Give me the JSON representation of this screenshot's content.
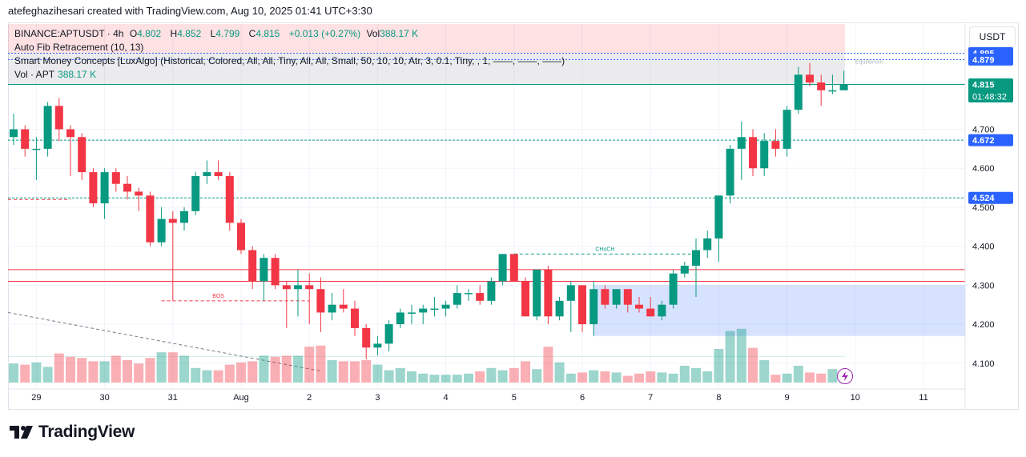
{
  "header": {
    "credit": "atefeghazihesari created with TradingView.com, Aug 10, 2025 01:41 UTC+3:30"
  },
  "legend": {
    "symbol": "BINANCE:APTUSDT · 4h",
    "open_label": "O",
    "open": "4.802",
    "high_label": "H",
    "high": "4.852",
    "low_label": "L",
    "low": "4.799",
    "close_label": "C",
    "close": "4.815",
    "change": "+0.013 (+0.27%)",
    "vol_label": "Vol",
    "vol": "388.17 K",
    "indicator_fib": "Auto Fib Retracement (10, 13)",
    "indicator_smc": "Smart Money Concepts [LuxAlgo] (Historical, Colored, All, All, Tiny, All, All, Small, 50, 10, 10, Atr, 3, 0.1, Tiny, , 1, ——, ——, ——)",
    "vol_indicator_label": "Vol · APT",
    "vol_indicator_value": "388.17 K"
  },
  "currency": "USDT",
  "footer": {
    "brand": "TradingView"
  },
  "colors": {
    "up": "#089981",
    "down": "#f23645",
    "blue": "#2962ff",
    "grid": "#f0f3fa"
  },
  "chart_data": {
    "type": "candlestick",
    "symbol": "BINANCE:APTUSDT",
    "timeframe": "4h",
    "ylim": [
      4.04,
      4.97
    ],
    "y_ticks": [
      "4.100",
      "4.200",
      "4.300",
      "4.400",
      "4.500",
      "4.600",
      "4.700"
    ],
    "x_ticks": [
      {
        "label": "29",
        "i": 2
      },
      {
        "label": "30",
        "i": 8
      },
      {
        "label": "31",
        "i": 14
      },
      {
        "label": "Aug",
        "i": 20
      },
      {
        "label": "2",
        "i": 26
      },
      {
        "label": "3",
        "i": 32
      },
      {
        "label": "4",
        "i": 38
      },
      {
        "label": "5",
        "i": 44
      },
      {
        "label": "6",
        "i": 50
      },
      {
        "label": "7",
        "i": 56
      },
      {
        "label": "8",
        "i": 62
      },
      {
        "label": "9",
        "i": 68
      },
      {
        "label": "10",
        "i": 74
      },
      {
        "label": "11",
        "i": 80
      }
    ],
    "candles": [
      [
        4.68,
        4.74,
        4.66,
        4.7
      ],
      [
        4.7,
        4.71,
        4.63,
        4.65
      ],
      [
        4.65,
        4.68,
        4.57,
        4.65
      ],
      [
        4.65,
        4.77,
        4.63,
        4.76
      ],
      [
        4.76,
        4.78,
        4.67,
        4.7
      ],
      [
        4.7,
        4.71,
        4.58,
        4.68
      ],
      [
        4.68,
        4.69,
        4.57,
        4.59
      ],
      [
        4.59,
        4.6,
        4.5,
        4.51
      ],
      [
        4.51,
        4.6,
        4.47,
        4.59
      ],
      [
        4.59,
        4.6,
        4.54,
        4.56
      ],
      [
        4.56,
        4.58,
        4.52,
        4.54
      ],
      [
        4.54,
        4.55,
        4.49,
        4.53
      ],
      [
        4.53,
        4.54,
        4.4,
        4.41
      ],
      [
        4.41,
        4.5,
        4.4,
        4.47
      ],
      [
        4.47,
        4.49,
        4.26,
        4.46
      ],
      [
        4.46,
        4.5,
        4.44,
        4.49
      ],
      [
        4.49,
        4.59,
        4.48,
        4.58
      ],
      [
        4.58,
        4.62,
        4.56,
        4.59
      ],
      [
        4.59,
        4.62,
        4.57,
        4.58
      ],
      [
        4.58,
        4.59,
        4.44,
        4.46
      ],
      [
        4.46,
        4.47,
        4.38,
        4.39
      ],
      [
        4.39,
        4.4,
        4.29,
        4.31
      ],
      [
        4.31,
        4.38,
        4.26,
        4.37
      ],
      [
        4.37,
        4.38,
        4.29,
        4.3
      ],
      [
        4.3,
        4.31,
        4.19,
        4.29
      ],
      [
        4.29,
        4.34,
        4.22,
        4.3
      ],
      [
        4.3,
        4.33,
        4.2,
        4.29
      ],
      [
        4.29,
        4.32,
        4.18,
        4.23
      ],
      [
        4.23,
        4.28,
        4.21,
        4.25
      ],
      [
        4.25,
        4.29,
        4.23,
        4.24
      ],
      [
        4.24,
        4.26,
        4.17,
        4.19
      ],
      [
        4.19,
        4.2,
        4.11,
        4.14
      ],
      [
        4.14,
        4.17,
        4.12,
        4.15
      ],
      [
        4.15,
        4.21,
        4.13,
        4.2
      ],
      [
        4.2,
        4.24,
        4.19,
        4.23
      ],
      [
        4.23,
        4.25,
        4.2,
        4.23
      ],
      [
        4.23,
        4.25,
        4.2,
        4.24
      ],
      [
        4.24,
        4.27,
        4.22,
        4.24
      ],
      [
        4.24,
        4.26,
        4.22,
        4.25
      ],
      [
        4.25,
        4.3,
        4.24,
        4.28
      ],
      [
        4.28,
        4.29,
        4.26,
        4.28
      ],
      [
        4.28,
        4.3,
        4.25,
        4.26
      ],
      [
        4.26,
        4.32,
        4.25,
        4.31
      ],
      [
        4.31,
        4.38,
        4.3,
        4.38
      ],
      [
        4.38,
        4.38,
        4.31,
        4.31
      ],
      [
        4.31,
        4.32,
        4.22,
        4.22
      ],
      [
        4.22,
        4.34,
        4.21,
        4.34
      ],
      [
        4.34,
        4.35,
        4.2,
        4.22
      ],
      [
        4.22,
        4.27,
        4.21,
        4.26
      ],
      [
        4.26,
        4.31,
        4.18,
        4.3
      ],
      [
        4.3,
        4.3,
        4.18,
        4.2
      ],
      [
        4.2,
        4.31,
        4.17,
        4.29
      ],
      [
        4.29,
        4.3,
        4.24,
        4.25
      ],
      [
        4.25,
        4.29,
        4.24,
        4.29
      ],
      [
        4.29,
        4.29,
        4.23,
        4.25
      ],
      [
        4.25,
        4.27,
        4.23,
        4.24
      ],
      [
        4.24,
        4.27,
        4.22,
        4.22
      ],
      [
        4.22,
        4.26,
        4.21,
        4.25
      ],
      [
        4.25,
        4.34,
        4.24,
        4.33
      ],
      [
        4.33,
        4.36,
        4.32,
        4.35
      ],
      [
        4.35,
        4.42,
        4.27,
        4.39
      ],
      [
        4.39,
        4.44,
        4.37,
        4.42
      ],
      [
        4.42,
        4.53,
        4.36,
        4.53
      ],
      [
        4.53,
        4.66,
        4.51,
        4.65
      ],
      [
        4.65,
        4.72,
        4.57,
        4.68
      ],
      [
        4.68,
        4.7,
        4.58,
        4.6
      ],
      [
        4.6,
        4.69,
        4.58,
        4.67
      ],
      [
        4.67,
        4.7,
        4.63,
        4.65
      ],
      [
        4.65,
        4.76,
        4.63,
        4.75
      ],
      [
        4.75,
        4.86,
        4.74,
        4.84
      ],
      [
        4.84,
        4.87,
        4.81,
        4.82
      ],
      [
        4.82,
        4.84,
        4.76,
        4.8
      ],
      [
        4.8,
        4.84,
        4.79,
        4.8
      ],
      [
        4.8,
        4.85,
        4.8,
        4.815
      ]
    ],
    "volume": [
      0.17,
      0.16,
      0.18,
      0.14,
      0.26,
      0.23,
      0.22,
      0.19,
      0.19,
      0.24,
      0.2,
      0.17,
      0.22,
      0.27,
      0.27,
      0.24,
      0.13,
      0.11,
      0.11,
      0.16,
      0.18,
      0.19,
      0.24,
      0.23,
      0.24,
      0.24,
      0.32,
      0.33,
      0.2,
      0.19,
      0.19,
      0.2,
      0.16,
      0.11,
      0.13,
      0.1,
      0.08,
      0.07,
      0.07,
      0.07,
      0.08,
      0.1,
      0.13,
      0.11,
      0.13,
      0.19,
      0.12,
      0.32,
      0.18,
      0.08,
      0.09,
      0.11,
      0.1,
      0.09,
      0.06,
      0.08,
      0.1,
      0.09,
      0.08,
      0.15,
      0.13,
      0.1,
      0.3,
      0.46,
      0.48,
      0.31,
      0.2,
      0.07,
      0.08,
      0.15,
      0.09,
      0.08,
      0.12,
      0.1
    ],
    "price_labels": [
      {
        "value": "4.895",
        "y": 4.895,
        "color": "#2962ff"
      },
      {
        "value": "4.879",
        "y": 4.879,
        "color": "#2962ff"
      },
      {
        "value": "4.815",
        "y": 4.815,
        "color": "#089981"
      },
      {
        "value": "4.672",
        "y": 4.672,
        "color": "#2962ff"
      },
      {
        "value": "4.524",
        "y": 4.524,
        "color": "#2962ff"
      }
    ],
    "countdown": "01:48:32",
    "annotations": [
      {
        "text": "Equilibrium",
        "y": 4.86
      },
      {
        "text": "CHoCH",
        "y": 4.38
      },
      {
        "text": "BOS",
        "y": 4.26
      }
    ],
    "fib_levels": [
      4.895,
      4.879,
      4.815,
      4.672,
      4.524
    ],
    "resistance_lines": [
      4.34,
      4.31
    ]
  }
}
